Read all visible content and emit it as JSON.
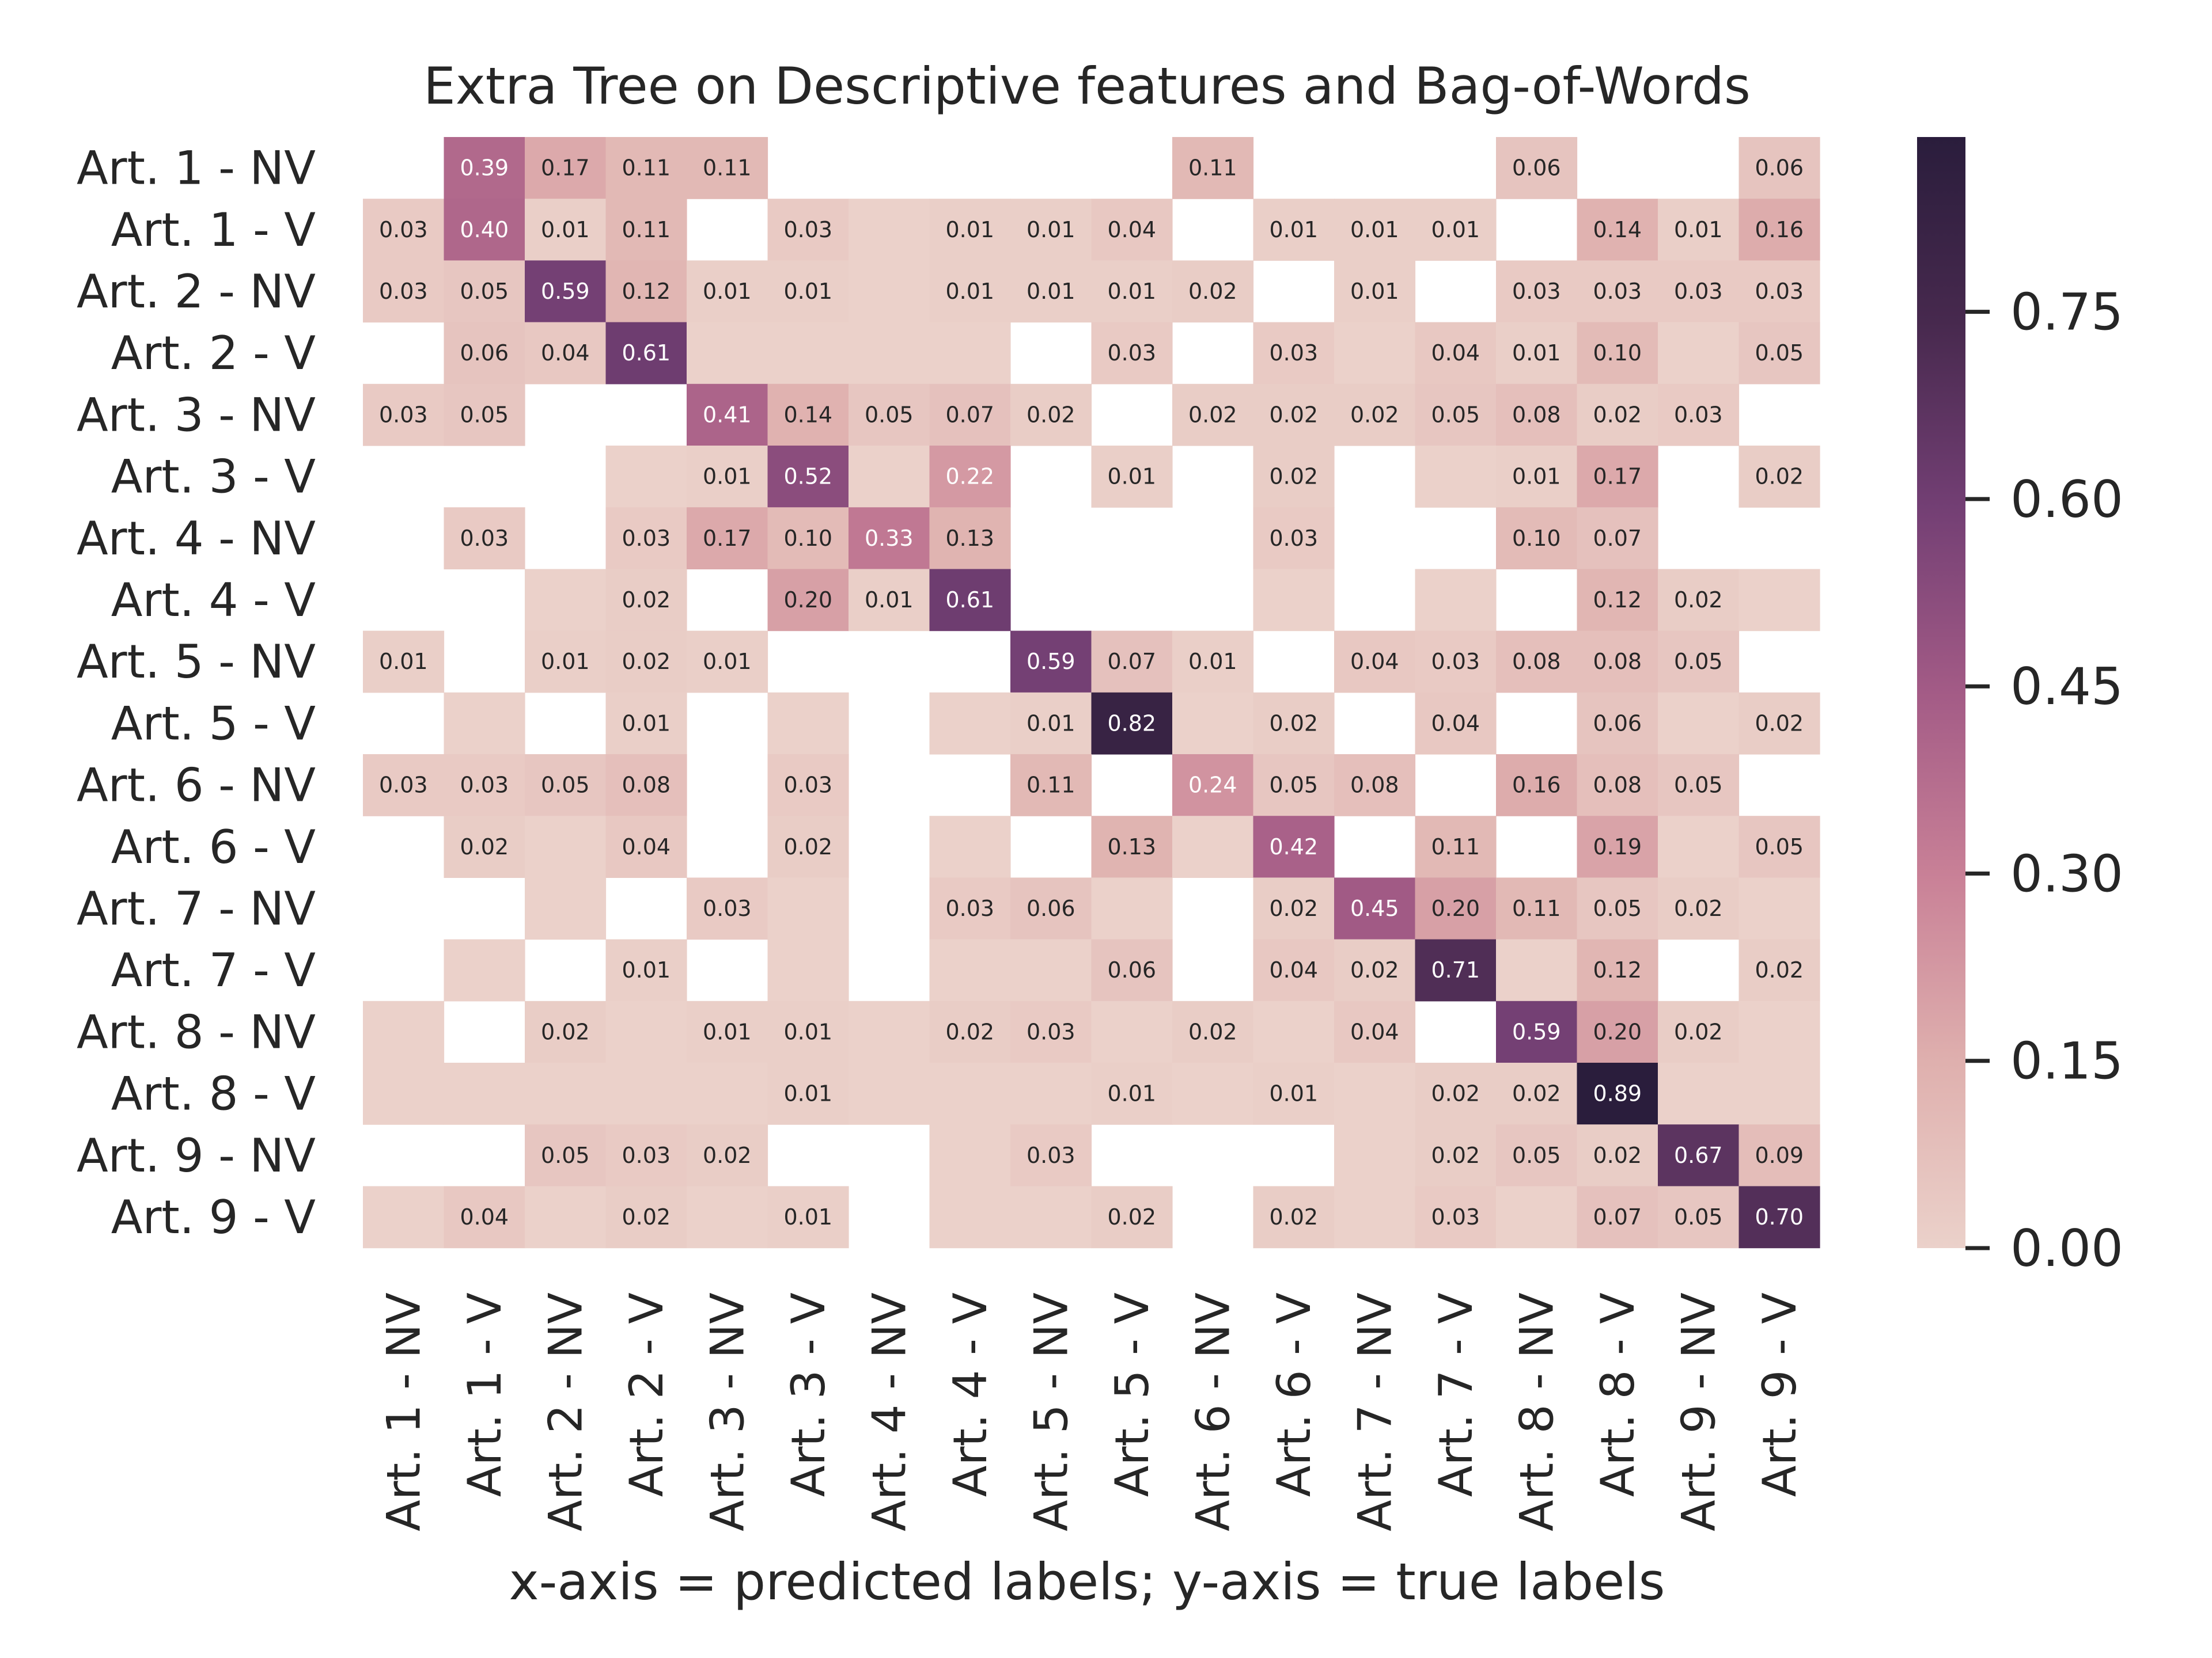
{
  "chart_data": {
    "type": "heatmap",
    "title": "Extra Tree on Descriptive features and Bag-of-Words",
    "xlabel": "x-axis = predicted labels; y-axis = true labels",
    "ylabel": "",
    "x_categories": [
      "Art. 1 - NV",
      "Art. 1 - V",
      "Art. 2 - NV",
      "Art. 2 - V",
      "Art. 3 - NV",
      "Art. 3 - V",
      "Art. 4 - NV",
      "Art. 4 - V",
      "Art. 5 - NV",
      "Art. 5 - V",
      "Art. 6 - NV",
      "Art. 6 - V",
      "Art. 7 - NV",
      "Art. 7 - V",
      "Art. 8 - NV",
      "Art. 8 - V",
      "Art. 9 - NV",
      "Art. 9 - V"
    ],
    "y_categories": [
      "Art. 1 - NV",
      "Art. 1 - V",
      "Art. 2 - NV",
      "Art. 2 - V",
      "Art. 3 - NV",
      "Art. 3 - V",
      "Art. 4 - NV",
      "Art. 4 - V",
      "Art. 5 - NV",
      "Art. 5 - V",
      "Art. 6 - NV",
      "Art. 6 - V",
      "Art. 7 - NV",
      "Art. 7 - V",
      "Art. 8 - NV",
      "Art. 8 - V",
      "Art. 9 - NV",
      "Art. 9 - V"
    ],
    "values": [
      [
        null,
        0.39,
        0.17,
        0.11,
        0.11,
        null,
        null,
        null,
        null,
        null,
        0.11,
        null,
        null,
        null,
        0.06,
        null,
        null,
        0.06
      ],
      [
        0.03,
        0.4,
        0.01,
        0.11,
        null,
        0.03,
        0.0,
        0.01,
        0.01,
        0.04,
        null,
        0.01,
        0.01,
        0.01,
        null,
        0.14,
        0.01,
        0.16
      ],
      [
        0.03,
        0.05,
        0.59,
        0.12,
        0.01,
        0.01,
        0.0,
        0.01,
        0.01,
        0.01,
        0.02,
        null,
        0.01,
        null,
        0.03,
        0.03,
        0.03,
        0.03
      ],
      [
        null,
        0.06,
        0.04,
        0.61,
        0.0,
        0.0,
        0.0,
        0.0,
        null,
        0.03,
        null,
        0.03,
        0.0,
        0.04,
        0.01,
        0.1,
        0.0,
        0.05
      ],
      [
        0.03,
        0.05,
        null,
        null,
        0.41,
        0.14,
        0.05,
        0.07,
        0.02,
        null,
        0.02,
        0.02,
        0.02,
        0.05,
        0.08,
        0.02,
        0.03,
        null
      ],
      [
        null,
        null,
        null,
        0.0,
        0.01,
        0.52,
        0.0,
        0.22,
        null,
        0.01,
        null,
        0.02,
        null,
        0.0,
        0.01,
        0.17,
        null,
        0.02
      ],
      [
        null,
        0.03,
        null,
        0.03,
        0.17,
        0.1,
        0.33,
        0.13,
        null,
        null,
        null,
        0.03,
        null,
        null,
        0.1,
        0.07,
        null,
        null
      ],
      [
        null,
        null,
        0.0,
        0.02,
        null,
        0.2,
        0.01,
        0.61,
        null,
        null,
        null,
        0.0,
        null,
        0.0,
        null,
        0.12,
        0.02,
        0.0
      ],
      [
        0.01,
        null,
        0.01,
        0.02,
        0.01,
        null,
        null,
        null,
        0.59,
        0.07,
        0.01,
        null,
        0.04,
        0.03,
        0.08,
        0.08,
        0.05,
        null
      ],
      [
        null,
        0.0,
        null,
        0.01,
        null,
        0.0,
        null,
        0.0,
        0.01,
        0.82,
        0.0,
        0.02,
        null,
        0.04,
        null,
        0.06,
        0.0,
        0.02
      ],
      [
        0.03,
        0.03,
        0.05,
        0.08,
        null,
        0.03,
        null,
        null,
        0.11,
        null,
        0.24,
        0.05,
        0.08,
        null,
        0.16,
        0.08,
        0.05,
        null
      ],
      [
        null,
        0.02,
        0.0,
        0.04,
        null,
        0.02,
        null,
        0.0,
        null,
        0.13,
        0.0,
        0.42,
        null,
        0.11,
        null,
        0.19,
        0.0,
        0.05
      ],
      [
        null,
        null,
        0.0,
        null,
        0.03,
        0.0,
        null,
        0.03,
        0.06,
        0.0,
        null,
        0.02,
        0.45,
        0.2,
        0.11,
        0.05,
        0.02,
        0.0
      ],
      [
        null,
        0.0,
        null,
        0.01,
        null,
        0.0,
        null,
        0.0,
        0.0,
        0.06,
        null,
        0.04,
        0.02,
        0.71,
        0.0,
        0.12,
        null,
        0.02
      ],
      [
        0.0,
        null,
        0.02,
        0.0,
        0.01,
        0.01,
        0.0,
        0.02,
        0.03,
        0.0,
        0.02,
        0.0,
        0.04,
        null,
        0.59,
        0.2,
        0.02,
        0.0
      ],
      [
        0.0,
        0.0,
        0.0,
        0.0,
        0.0,
        0.01,
        0.0,
        0.0,
        0.0,
        0.01,
        0.0,
        0.01,
        0.0,
        0.02,
        0.02,
        0.89,
        0.0,
        0.0
      ],
      [
        null,
        null,
        0.05,
        0.03,
        0.02,
        null,
        null,
        0.0,
        0.03,
        null,
        null,
        null,
        0.0,
        0.02,
        0.05,
        0.02,
        0.67,
        0.09
      ],
      [
        0.0,
        0.04,
        0.0,
        0.02,
        0.0,
        0.01,
        null,
        0.0,
        0.0,
        0.02,
        null,
        0.02,
        0.0,
        0.03,
        0.0,
        0.07,
        0.05,
        0.7
      ]
    ],
    "annotation_format": "2 decimals; zero-valued cells shaded without label; missing cells blank",
    "colorbar": {
      "vmin": 0.0,
      "vmax": 0.89,
      "ticks": [
        0.0,
        0.15,
        0.3,
        0.45,
        0.6,
        0.75
      ],
      "tick_labels": [
        "0.00",
        "0.15",
        "0.30",
        "0.45",
        "0.60",
        "0.75"
      ],
      "colormap_stops": [
        "#ebd1ca",
        "#dfb0ae",
        "#c98197",
        "#a35b86",
        "#733f74",
        "#47294e",
        "#2a1d3c"
      ]
    },
    "grid": false,
    "legend": "colorbar-right"
  }
}
